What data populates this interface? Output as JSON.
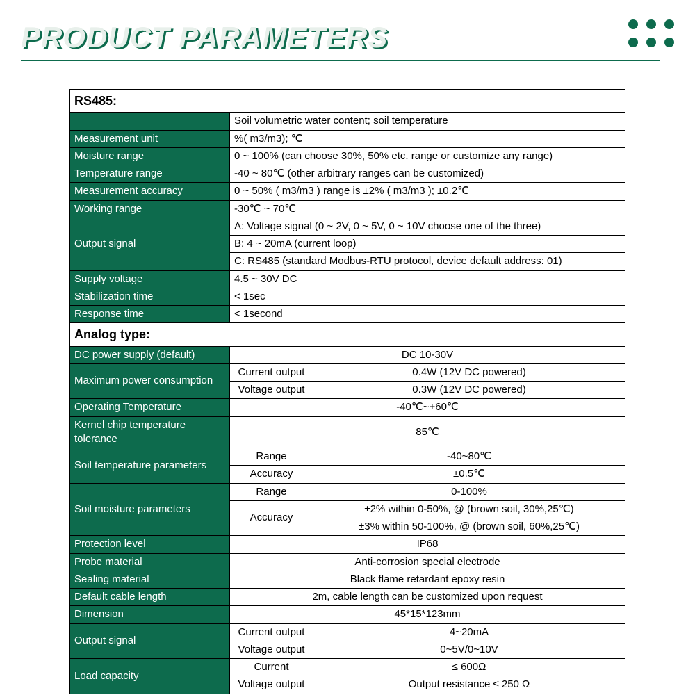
{
  "heading": "PRODUCT PARAMETERS",
  "colors": {
    "brand": "#0d6b4d",
    "title_front": "#e8f0eb",
    "border": "#000000",
    "bg": "#ffffff"
  },
  "rs485": {
    "section": "RS485:",
    "row0_val": "Soil volumetric water content; soil temperature",
    "measurement_unit": {
      "label": "Measurement unit",
      "val": "%( m3/m3); ℃"
    },
    "moisture_range": {
      "label": "Moisture range",
      "val": "0 ~ 100% (can choose 30%, 50% etc. range or customize any range)"
    },
    "temperature_range": {
      "label": "Temperature range",
      "val": "-40 ~ 80℃ (other arbitrary ranges can be customized)"
    },
    "measurement_accuracy": {
      "label": "Measurement accuracy",
      "val": "0 ~ 50% ( m3/m3 ) range is ±2% ( m3/m3 ); ±0.2℃"
    },
    "working_range": {
      "label": "Working range",
      "val": "-30℃ ~ 70℃"
    },
    "output_signal": {
      "label": "Output signal",
      "a": "A: Voltage signal (0 ~ 2V, 0 ~ 5V, 0 ~ 10V choose one of the three)",
      "b": "B: 4 ~ 20mA (current loop)",
      "c": "C: RS485 (standard Modbus-RTU protocol, device default address: 01)"
    },
    "supply_voltage": {
      "label": "Supply voltage",
      "val": "4.5 ~ 30V DC"
    },
    "stabilization_time": {
      "label": "Stabilization time",
      "val": "< 1sec"
    },
    "response_time": {
      "label": "Response time",
      "val": "< 1second"
    }
  },
  "analog": {
    "section": "Analog type:",
    "dc_power": {
      "label": "DC power supply (default)",
      "val": "DC 10-30V"
    },
    "max_power": {
      "label": "Maximum power consumption",
      "current_label": "Current output",
      "current_val": "0.4W (12V DC powered)",
      "voltage_label": "Voltage output",
      "voltage_val": "0.3W (12V DC powered)"
    },
    "operating_temp": {
      "label": "Operating Temperature",
      "val": "-40℃~+60℃"
    },
    "kernel_chip": {
      "label": "Kernel chip temperature tolerance",
      "val": "85℃"
    },
    "soil_temp": {
      "label": "Soil temperature parameters",
      "range_label": "Range",
      "range_val": "-40~80℃",
      "accuracy_label": "Accuracy",
      "accuracy_val": "±0.5℃"
    },
    "soil_moist": {
      "label": "Soil moisture parameters",
      "range_label": "Range",
      "range_val": "0-100%",
      "accuracy_label": "Accuracy",
      "accuracy_val1": "±2% within 0-50%, @ (brown soil, 30%,25℃)",
      "accuracy_val2": "±3% within 50-100%, @ (brown soil, 60%,25℃)"
    },
    "protection": {
      "label": "Protection level",
      "val": "IP68"
    },
    "probe_mat": {
      "label": "Probe material",
      "val": "Anti-corrosion special electrode"
    },
    "sealing_mat": {
      "label": "Sealing material",
      "val": "Black flame retardant epoxy resin"
    },
    "cable_len": {
      "label": "Default cable length",
      "val": "2m, cable length can be customized upon request"
    },
    "dimension": {
      "label": "Dimension",
      "val": "45*15*123mm"
    },
    "output_signal": {
      "label": "Output signal",
      "current_label": "Current output",
      "current_val": "4~20mA",
      "voltage_label": "Voltage output",
      "voltage_val": "0~5V/0~10V"
    },
    "load_cap": {
      "label": "Load capacity",
      "current_label": "Current",
      "current_val": "≤ 600Ω",
      "voltage_label": "Voltage output",
      "voltage_val": "Output resistance ≤ 250 Ω"
    }
  }
}
